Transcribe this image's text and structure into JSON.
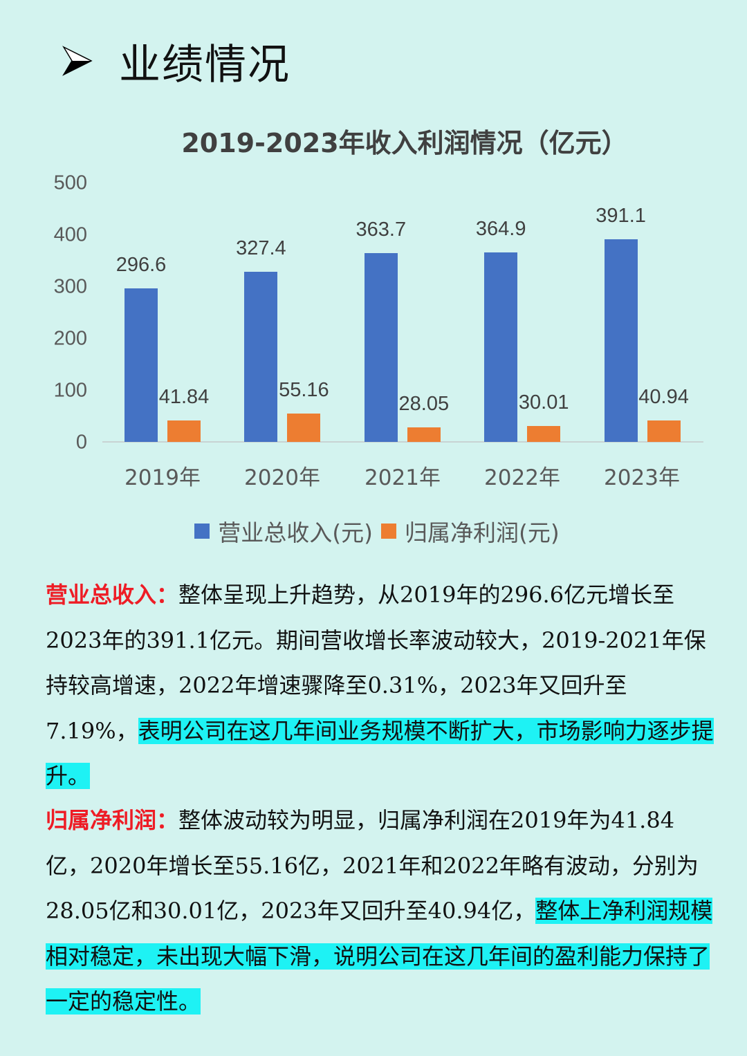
{
  "heading": {
    "icon": "arrowhead-bullet-icon",
    "text": "业绩情况"
  },
  "colors": {
    "background": "#d3f3ef",
    "revenue": "#4472c4",
    "profit": "#ed7d31",
    "lead_label": "#ee1c25",
    "highlight": "#1ef2f4"
  },
  "chart_data": {
    "type": "bar",
    "title": "2019-2023年收入利润情况（亿元）",
    "categories": [
      "2019年",
      "2020年",
      "2021年",
      "2022年",
      "2023年"
    ],
    "series": [
      {
        "name": "营业总收入(元)",
        "color": "#4472c4",
        "values": [
          296.6,
          327.4,
          363.7,
          364.9,
          391.1
        ],
        "labels": [
          "296.6",
          "327.4",
          "363.7",
          "364.9",
          "391.1"
        ]
      },
      {
        "name": "归属净利润(元)",
        "color": "#ed7d31",
        "values": [
          41.84,
          55.16,
          28.05,
          30.01,
          40.94
        ],
        "labels": [
          "41.84",
          "55.16",
          "28.05",
          "30.01",
          "40.94"
        ]
      }
    ],
    "xlabel": "",
    "ylabel": "",
    "ylim": [
      0,
      500
    ],
    "yticks": [
      "0",
      "100",
      "200",
      "300",
      "400",
      "500"
    ],
    "grid": false,
    "legend_position": "bottom"
  },
  "text": {
    "revenue": {
      "lead": "营业总收入：",
      "body": "整体呈现上升趋势，从2019年的296.6亿元增长至2023年的391.1亿元。期间营收增长率波动较大，2019-2021年保持较高增速，2022年增速骤降至0.31%，2023年又回升至7.19%，",
      "highlight": "表明公司在这几年间业务规模不断扩大，市场影响力逐步提升。"
    },
    "profit": {
      "lead": "归属净利润：",
      "body": "整体波动较为明显，归属净利润在2019年为41.84亿，2020年增长至55.16亿，2021年和2022年略有波动，分别为28.05亿和30.01亿，2023年又回升至40.94亿，",
      "highlight": "整体上净利润规模相对稳定，未出现大幅下滑，说明公司在这几年间的盈利能力保持了一定的稳定性。"
    }
  }
}
